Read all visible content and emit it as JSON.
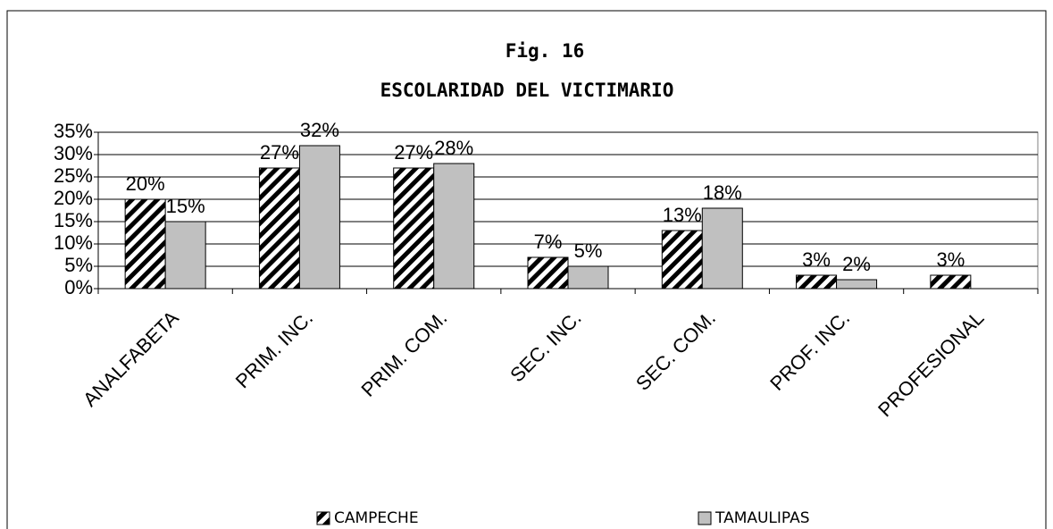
{
  "chart_data": {
    "type": "bar",
    "title": "Fig. 16",
    "subtitle": "ESCOLARIDAD DEL VICTIMARIO",
    "categories": [
      "ANALFABETA",
      "PRIM. INC.",
      "PRIM. COM.",
      "SEC. INC.",
      "SEC. COM.",
      "PROF. INC.",
      "PROFESIONAL"
    ],
    "series": [
      {
        "name": "CAMPECHE",
        "color": "#000000",
        "pattern": "hatch",
        "values": [
          20,
          27,
          27,
          7,
          13,
          3,
          3
        ],
        "value_labels": [
          "20%",
          "27%",
          "27%",
          "7%",
          "13%",
          "3%",
          "3%"
        ]
      },
      {
        "name": "TAMAULIPAS",
        "color": "#c0c0c0",
        "pattern": "solid",
        "values": [
          15,
          32,
          28,
          5,
          18,
          2,
          null
        ],
        "value_labels": [
          "15%",
          "32%",
          "28%",
          "5%",
          "18%",
          "2%",
          null
        ]
      }
    ],
    "ylim": [
      0,
      35
    ],
    "yticks": [
      {
        "value": 0,
        "label": "0%"
      },
      {
        "value": 5,
        "label": "5%"
      },
      {
        "value": 10,
        "label": "10%"
      },
      {
        "value": 15,
        "label": "15%"
      },
      {
        "value": 20,
        "label": "20%"
      },
      {
        "value": 25,
        "label": "25%"
      },
      {
        "value": 30,
        "label": "30%"
      },
      {
        "value": 35,
        "label": "35%"
      }
    ],
    "grid": true,
    "legend": "bottom"
  }
}
